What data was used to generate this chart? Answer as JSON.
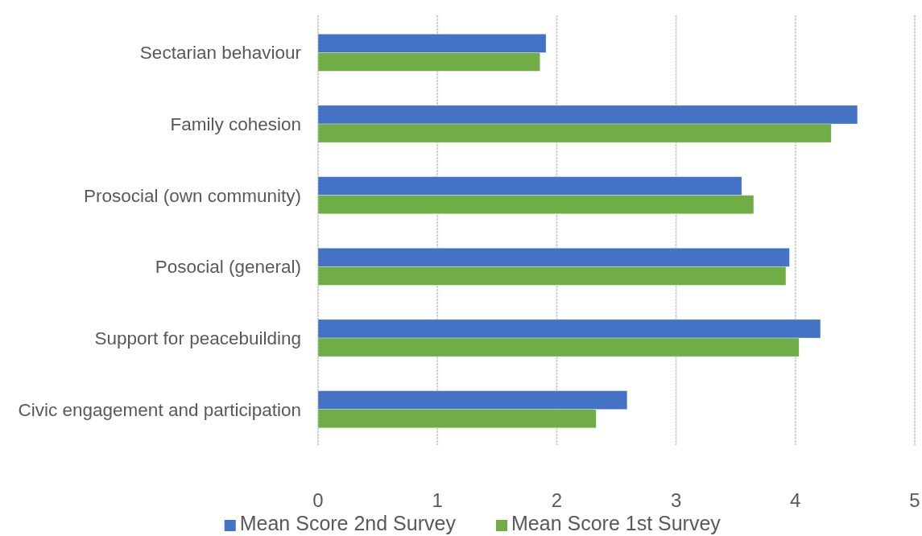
{
  "chart_data": {
    "type": "bar",
    "orientation": "horizontal",
    "categories": [
      "Sectarian behaviour",
      "Family cohesion",
      "Prosocial (own community)",
      "Posocial (general)",
      "Support for peacebuilding",
      "Civic engagement and participation"
    ],
    "series": [
      {
        "name": "Mean Score 2nd Survey",
        "color": "#4472c4",
        "values": [
          1.91,
          4.52,
          3.55,
          3.95,
          4.21,
          2.59
        ]
      },
      {
        "name": "Mean Score 1st Survey",
        "color": "#70ad47",
        "values": [
          1.86,
          4.3,
          3.65,
          3.92,
          4.03,
          2.33
        ]
      }
    ],
    "xlim": [
      0,
      5
    ],
    "xticks": [
      0,
      1,
      2,
      3,
      4,
      5
    ],
    "grid": "x",
    "legend": "bottom"
  }
}
